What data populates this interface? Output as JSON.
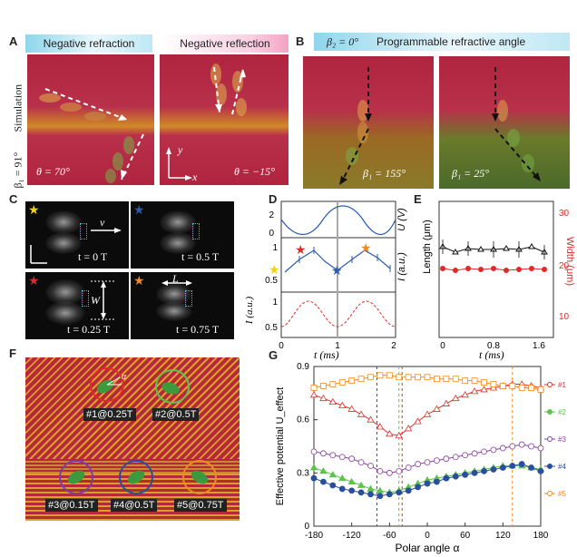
{
  "panels": {
    "A": "A",
    "B": "B",
    "C": "C",
    "D": "D",
    "E": "E",
    "F": "F",
    "G": "G"
  },
  "A": {
    "pill_left": "Negative refraction",
    "pill_right": "Negative reflection",
    "side_label_sim": "Simulation",
    "side_label_beta": "β₁ = 91°",
    "theta_left": "θ = 70°",
    "theta_right": "θ = −15°",
    "axis_y": "y",
    "axis_x": "x"
  },
  "B": {
    "pill_beta": "β₂ = 0°",
    "pill_text": "Programmable refractive angle",
    "beta_left": "β₁ = 155°",
    "beta_right": "β₁ = 25°"
  },
  "C": {
    "frames": [
      {
        "time": "t = 0 T",
        "star_color": "#f0d21e"
      },
      {
        "time": "t = 0.5 T",
        "star_color": "#2a5db0"
      },
      {
        "time": "t = 0.25 T",
        "star_color": "#e02a2a"
      },
      {
        "time": "t = 0.75 T",
        "star_color": "#f08a24"
      }
    ],
    "v_label": "v",
    "W_label": "W",
    "L_label": "L"
  },
  "D": {
    "ylabel_top": "U (V)",
    "ylabel_mid": "I (a.u.)",
    "ylabel_bot": "I (a.u.)",
    "xlabel": "t (ms)",
    "top_ticks": [
      "2",
      "0"
    ],
    "mid_ticks": [
      "1",
      "0.5"
    ],
    "bot_ticks": [
      "1",
      "0.5"
    ],
    "x_ticks": [
      "0",
      "1",
      "2"
    ]
  },
  "E": {
    "ylabel_left": "Length (μm)",
    "ylabel_right": "Width (μm)",
    "xlabel": "t (ms)",
    "x_ticks": [
      "0",
      "0.8",
      "1.6"
    ],
    "right_ticks": [
      "30",
      "20",
      "10"
    ]
  },
  "F": {
    "labels": [
      "#1@0.25T",
      "#2@0.5T",
      "#3@0.15T",
      "#4@0.5T",
      "#5@0.75T"
    ],
    "alpha": "α"
  },
  "chart_data": {
    "type": "line",
    "title": "",
    "xlabel": "Polar angle α",
    "ylabel": "Effective potential U_effect",
    "xlim": [
      -180,
      180
    ],
    "ylim": [
      0,
      0.9
    ],
    "x_ticks": [
      "-180",
      "-120",
      "-60",
      "0",
      "60",
      "120",
      "180"
    ],
    "y_ticks": [
      "0",
      "0.3",
      "0.6",
      "0.9"
    ],
    "x": [
      -180,
      -165,
      -150,
      -135,
      -120,
      -105,
      -90,
      -75,
      -60,
      -45,
      -30,
      -15,
      0,
      15,
      30,
      45,
      60,
      75,
      90,
      105,
      120,
      135,
      150,
      165,
      180
    ],
    "series": [
      {
        "name": "#1",
        "color": "#e0302f",
        "values": [
          0.74,
          0.72,
          0.7,
          0.68,
          0.66,
          0.63,
          0.6,
          0.56,
          0.52,
          0.51,
          0.55,
          0.59,
          0.63,
          0.66,
          0.69,
          0.72,
          0.74,
          0.76,
          0.77,
          0.78,
          0.79,
          0.8,
          0.8,
          0.79,
          0.78
        ]
      },
      {
        "name": "#2",
        "color": "#5ec24d",
        "values": [
          0.33,
          0.31,
          0.29,
          0.27,
          0.25,
          0.23,
          0.21,
          0.2,
          0.19,
          0.2,
          0.22,
          0.24,
          0.26,
          0.27,
          0.28,
          0.29,
          0.3,
          0.31,
          0.32,
          0.33,
          0.34,
          0.34,
          0.34,
          0.33,
          0.32
        ]
      },
      {
        "name": "#3",
        "color": "#8a3fa0",
        "values": [
          0.42,
          0.41,
          0.4,
          0.39,
          0.38,
          0.36,
          0.34,
          0.31,
          0.3,
          0.31,
          0.33,
          0.35,
          0.36,
          0.37,
          0.38,
          0.39,
          0.4,
          0.41,
          0.42,
          0.43,
          0.44,
          0.45,
          0.46,
          0.45,
          0.44
        ]
      },
      {
        "name": "#4",
        "color": "#2a4f9a",
        "values": [
          0.27,
          0.25,
          0.23,
          0.21,
          0.2,
          0.19,
          0.18,
          0.17,
          0.18,
          0.19,
          0.2,
          0.22,
          0.24,
          0.25,
          0.27,
          0.28,
          0.29,
          0.3,
          0.31,
          0.32,
          0.33,
          0.34,
          0.35,
          0.33,
          0.31
        ]
      },
      {
        "name": "#5",
        "color": "#f08a24",
        "values": [
          0.78,
          0.79,
          0.8,
          0.81,
          0.82,
          0.83,
          0.84,
          0.85,
          0.85,
          0.84,
          0.84,
          0.84,
          0.84,
          0.83,
          0.83,
          0.83,
          0.82,
          0.82,
          0.81,
          0.8,
          0.79,
          0.79,
          0.78,
          0.78,
          0.77
        ]
      }
    ],
    "vlines": [
      {
        "x": -80,
        "color": "#2a4f9a"
      },
      {
        "x": -45,
        "color": "#5ec24d"
      },
      {
        "x": -40,
        "color": "#e0302f"
      },
      {
        "x": 135,
        "color": "#f08a24"
      }
    ],
    "legend_position": "right"
  }
}
